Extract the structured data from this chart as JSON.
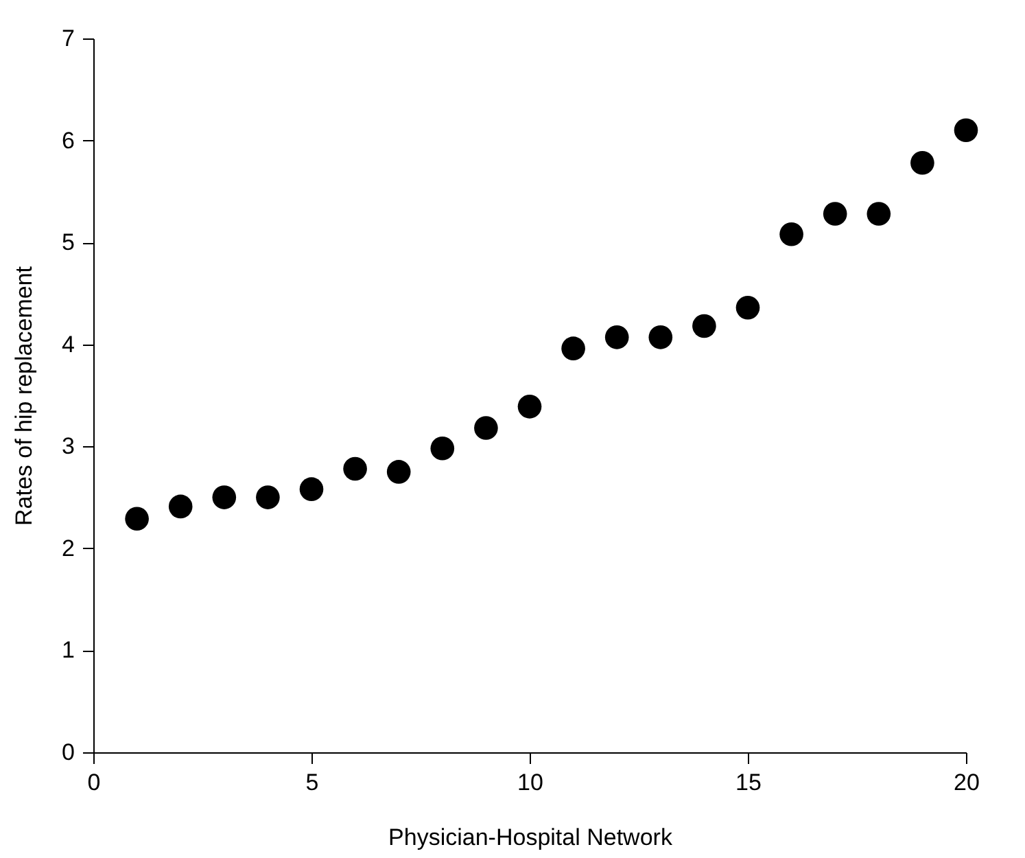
{
  "chart_data": {
    "type": "scatter",
    "xlabel": "Physician-Hospital Network",
    "ylabel": "Rates of hip replacement",
    "x": [
      1,
      2,
      3,
      4,
      5,
      6,
      7,
      8,
      9,
      10,
      11,
      12,
      13,
      14,
      15,
      16,
      17,
      18,
      19,
      20
    ],
    "series": [
      {
        "color": "#000000",
        "values": [
          2.29,
          2.41,
          2.5,
          2.5,
          2.58,
          2.78,
          2.75,
          2.98,
          3.18,
          3.39,
          3.96,
          4.07,
          4.07,
          4.18,
          4.36,
          5.08,
          5.28,
          5.28,
          5.78,
          6.1
        ]
      }
    ],
    "xlim": [
      0,
      20
    ],
    "xticks": [
      0,
      5,
      10,
      15,
      20
    ],
    "ylim": [
      0,
      7
    ],
    "yticks": [
      0,
      1,
      2,
      3,
      4,
      5,
      6,
      7
    ],
    "grid": false,
    "legend": false,
    "marker": "circle"
  }
}
